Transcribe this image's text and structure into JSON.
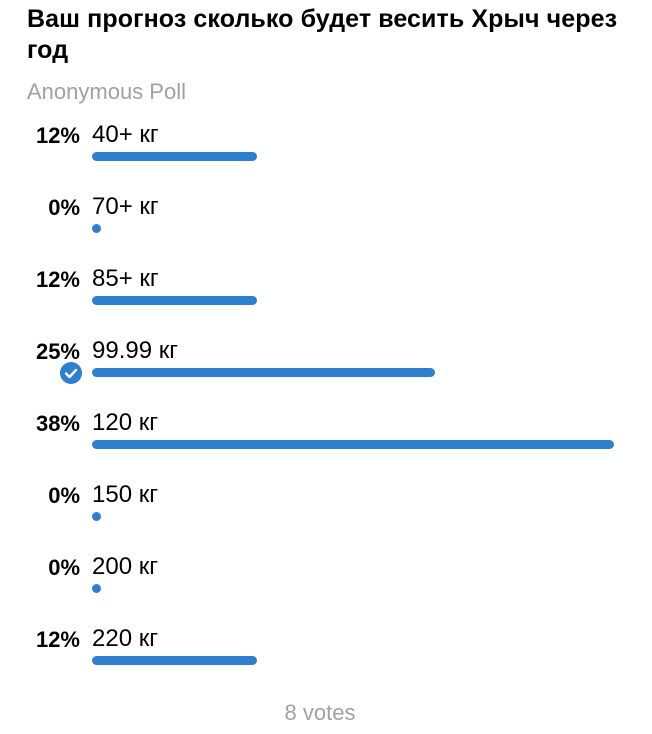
{
  "poll": {
    "question": "Ваш прогноз сколько будет весить Хрыч через год",
    "type_label": "Anonymous Poll",
    "accent_color": "#2f7fcf",
    "options": [
      {
        "percent_label": "12%",
        "label": "40+ кг",
        "fraction": 0.3158,
        "chosen": false
      },
      {
        "percent_label": "0%",
        "label": "70+ кг",
        "fraction": 0.0,
        "chosen": false
      },
      {
        "percent_label": "12%",
        "label": "85+ кг",
        "fraction": 0.3158,
        "chosen": false
      },
      {
        "percent_label": "25%",
        "label": "99.99 кг",
        "fraction": 0.6579,
        "chosen": true
      },
      {
        "percent_label": "38%",
        "label": "120 кг",
        "fraction": 1.0,
        "chosen": false
      },
      {
        "percent_label": "0%",
        "label": "150 кг",
        "fraction": 0.0,
        "chosen": false
      },
      {
        "percent_label": "0%",
        "label": "200 кг",
        "fraction": 0.0,
        "chosen": false
      },
      {
        "percent_label": "12%",
        "label": "220 кг",
        "fraction": 0.3158,
        "chosen": false
      }
    ],
    "votes_label": "8 votes"
  }
}
